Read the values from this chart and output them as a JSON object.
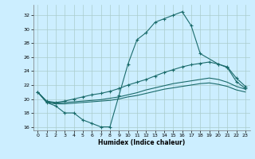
{
  "xlabel": "Humidex (Indice chaleur)",
  "bg_color": "#cceeff",
  "grid_color": "#aacccc",
  "line_color": "#1a6b6b",
  "ylim": [
    15.5,
    33.5
  ],
  "yticks": [
    16,
    18,
    20,
    22,
    24,
    26,
    28,
    30,
    32
  ],
  "xlim": [
    -0.5,
    23.5
  ],
  "xticks": [
    0,
    1,
    2,
    3,
    4,
    5,
    6,
    7,
    8,
    9,
    10,
    11,
    12,
    13,
    14,
    15,
    16,
    17,
    18,
    19,
    20,
    21,
    22,
    23
  ],
  "line1_x": [
    0,
    1,
    2,
    3,
    4,
    5,
    6,
    7,
    8,
    9,
    10,
    11,
    12,
    13,
    14,
    15,
    16,
    17,
    18,
    20,
    21,
    22,
    23
  ],
  "line1_y": [
    21.0,
    19.5,
    19.0,
    18.0,
    18.0,
    17.0,
    16.5,
    16.0,
    16.0,
    20.5,
    25.0,
    28.5,
    29.5,
    31.0,
    31.5,
    32.0,
    32.5,
    30.5,
    26.5,
    25.0,
    24.5,
    22.5,
    21.5
  ],
  "line2_x": [
    0,
    1,
    2,
    3,
    4,
    5,
    6,
    7,
    8,
    9,
    10,
    11,
    12,
    13,
    14,
    15,
    16,
    17,
    18,
    19,
    20,
    21,
    22,
    23
  ],
  "line2_y": [
    21.0,
    19.7,
    19.5,
    19.7,
    20.0,
    20.3,
    20.6,
    20.8,
    21.1,
    21.5,
    22.0,
    22.4,
    22.8,
    23.3,
    23.8,
    24.2,
    24.6,
    24.9,
    25.1,
    25.3,
    25.0,
    24.6,
    23.0,
    21.8
  ],
  "line3_x": [
    0,
    1,
    2,
    3,
    4,
    5,
    6,
    7,
    8,
    9,
    10,
    11,
    12,
    13,
    14,
    15,
    16,
    17,
    18,
    19,
    20,
    21,
    22,
    23
  ],
  "line3_y": [
    21.0,
    19.6,
    19.4,
    19.5,
    19.6,
    19.7,
    19.8,
    19.9,
    20.1,
    20.3,
    20.6,
    20.9,
    21.3,
    21.6,
    21.9,
    22.2,
    22.4,
    22.6,
    22.8,
    23.0,
    22.8,
    22.4,
    21.8,
    21.4
  ],
  "line4_x": [
    0,
    1,
    2,
    3,
    4,
    5,
    6,
    7,
    8,
    9,
    10,
    11,
    12,
    13,
    14,
    15,
    16,
    17,
    18,
    19,
    20,
    21,
    22,
    23
  ],
  "line4_y": [
    21.0,
    19.5,
    19.3,
    19.3,
    19.4,
    19.5,
    19.6,
    19.7,
    19.8,
    20.0,
    20.3,
    20.5,
    20.8,
    21.1,
    21.4,
    21.6,
    21.8,
    22.0,
    22.2,
    22.3,
    22.1,
    21.8,
    21.3,
    21.0
  ]
}
